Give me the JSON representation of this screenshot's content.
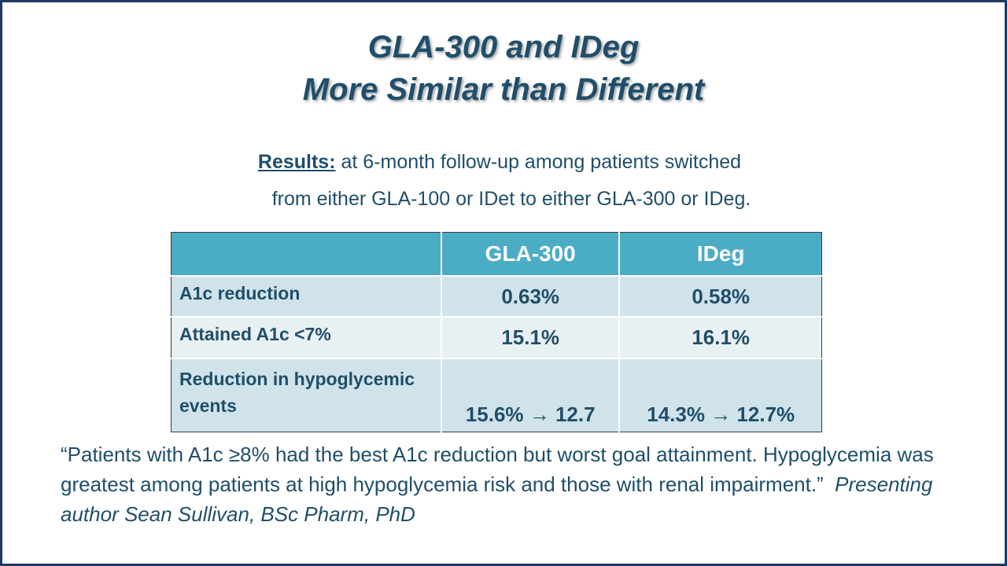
{
  "title": {
    "line1": "GLA-300 and IDeg",
    "line2": "More Similar than Different"
  },
  "intro": {
    "label": "Results:",
    "line1_rest": " at 6-month follow-up among patients switched",
    "line2": "from either GLA-100 or IDet to either GLA-300 or IDeg."
  },
  "table": {
    "headers": [
      "",
      "GLA-300",
      "IDeg"
    ],
    "rows": [
      {
        "label": "A1c reduction",
        "gla300": "0.63%",
        "ideg": "0.58%"
      },
      {
        "label": "Attained A1c <7%",
        "gla300": "15.1%",
        "ideg": "16.1%"
      },
      {
        "label": "Reduction in hypoglycemic events",
        "gla300": "15.6% → 12.7",
        "ideg": "14.3% → 12.7%"
      }
    ]
  },
  "quote": {
    "text": "“Patients with A1c ≥8% had the best A1c reduction but worst goal attainment. Hypoglycemia was greatest among patients at high hypoglycemia risk and those with renal impairment.”",
    "attribution": "Presenting author Sean Sullivan, BSc Pharm, PhD"
  },
  "colors": {
    "title": "#1f4e6a",
    "header_bg": "#4bacc6",
    "row_odd": "#d0e3ea",
    "row_even": "#e9f0f3",
    "border": "#1f3864"
  }
}
